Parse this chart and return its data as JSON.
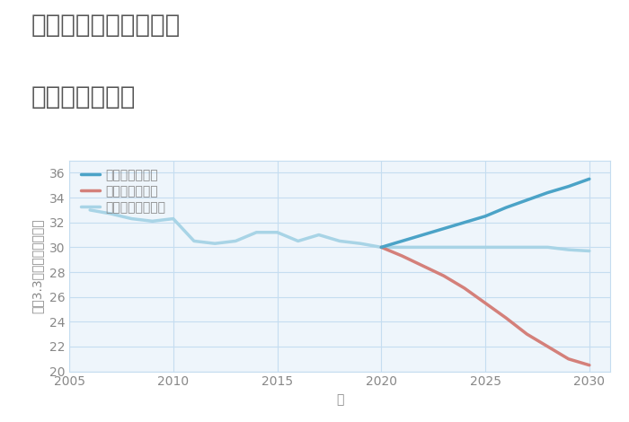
{
  "title_line1": "愛知県瀬戸市孫田町の",
  "title_line2": "土地の価格推移",
  "xlabel": "年",
  "ylabel_parts": [
    "坪（3.3㎡）単価（万円）"
  ],
  "ylim": [
    20,
    37
  ],
  "xlim": [
    2005,
    2031
  ],
  "yticks": [
    20,
    22,
    24,
    26,
    28,
    30,
    32,
    34,
    36
  ],
  "xticks": [
    2005,
    2010,
    2015,
    2020,
    2025,
    2030
  ],
  "bg_color": "#eef5fb",
  "normal_x": [
    2006,
    2007,
    2008,
    2009,
    2010,
    2011,
    2012,
    2013,
    2014,
    2015,
    2016,
    2017,
    2018,
    2019,
    2020,
    2021,
    2022,
    2023,
    2024,
    2025,
    2026,
    2027,
    2028,
    2029,
    2030
  ],
  "normal_y": [
    33.0,
    32.7,
    32.3,
    32.1,
    32.3,
    30.5,
    30.3,
    30.5,
    31.2,
    31.2,
    30.5,
    31.0,
    30.5,
    30.3,
    30.0,
    30.0,
    30.0,
    30.0,
    30.0,
    30.0,
    30.0,
    30.0,
    30.0,
    29.8,
    29.7
  ],
  "good_x": [
    2020,
    2021,
    2022,
    2023,
    2024,
    2025,
    2026,
    2027,
    2028,
    2029,
    2030
  ],
  "good_y": [
    30.0,
    30.5,
    31.0,
    31.5,
    32.0,
    32.5,
    33.2,
    33.8,
    34.4,
    34.9,
    35.5
  ],
  "bad_x": [
    2020,
    2021,
    2022,
    2023,
    2024,
    2025,
    2026,
    2027,
    2028,
    2029,
    2030
  ],
  "bad_y": [
    30.0,
    29.3,
    28.5,
    27.7,
    26.7,
    25.5,
    24.3,
    23.0,
    22.0,
    21.0,
    20.5
  ],
  "normal_color": "#a8d4e6",
  "good_color": "#4ba3c7",
  "bad_color": "#d4807a",
  "normal_label": "ノーマルシナリオ",
  "good_label": "グッドシナリオ",
  "bad_label": "バッドシナリオ",
  "line_width": 2.5,
  "grid_color": "#c5ddf0",
  "title_color": "#555555",
  "title_fontsize": 20,
  "legend_fontsize": 10,
  "tick_fontsize": 10,
  "label_fontsize": 10,
  "axis_label_color": "#888888",
  "tick_color": "#888888"
}
